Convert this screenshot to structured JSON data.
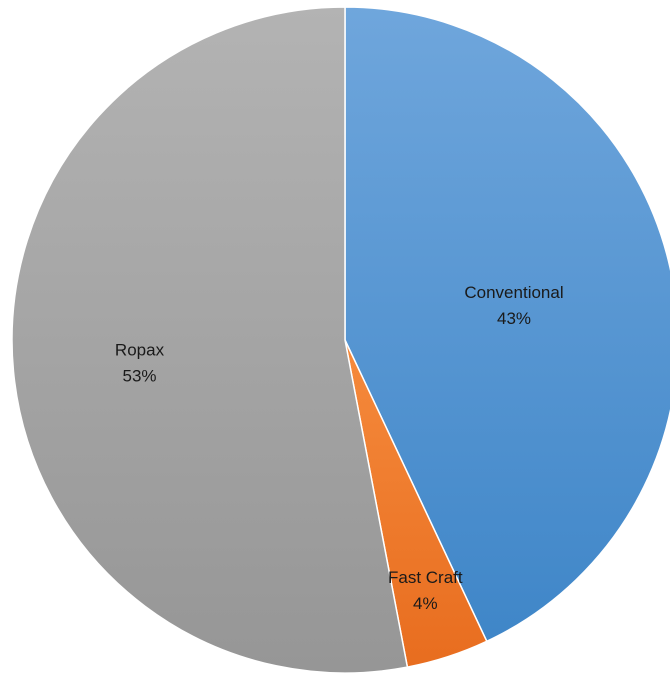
{
  "chart_data": {
    "type": "pie",
    "title": "",
    "start_angle_deg": 0,
    "direction": "clockwise",
    "slices": [
      {
        "name": "Conventional",
        "value": 43,
        "label_pct": "43%",
        "color_top": "#6fa6dc",
        "color_bottom": "#3f86c8"
      },
      {
        "name": "Fast Craft",
        "value": 4,
        "label_pct": "4%",
        "color_top": "#f58a3c",
        "color_bottom": "#e86d1f"
      },
      {
        "name": "Ropax",
        "value": 53,
        "label_pct": "53%",
        "color_top": "#b3b3b3",
        "color_bottom": "#969696"
      }
    ],
    "legend": "none",
    "labels": "inside"
  }
}
